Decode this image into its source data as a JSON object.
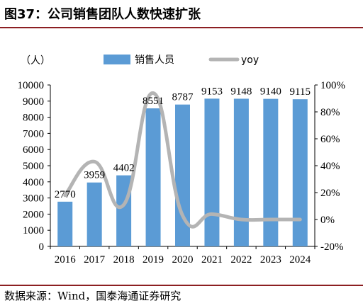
{
  "title": "图37：公司销售团队人数快速扩张",
  "source": "数据来源：Wind，国泰海通证券研究",
  "chart_data": {
    "type": "bar",
    "categories": [
      "2016",
      "2017",
      "2018",
      "2019",
      "2020",
      "2021",
      "2022",
      "2023",
      "2024"
    ],
    "series": [
      {
        "name": "销售人员",
        "type": "bar",
        "axis": "left",
        "values": [
          2770,
          3959,
          4402,
          8551,
          8787,
          9153,
          9148,
          9140,
          9115
        ]
      },
      {
        "name": "yoy",
        "type": "line",
        "axis": "right",
        "values": [
          18,
          43,
          11,
          94,
          3,
          4,
          0,
          0,
          0
        ]
      }
    ],
    "data_labels": [
      "2770",
      "3959",
      "4402",
      "8551",
      "8787",
      "9153",
      "9148",
      "9140",
      "9115"
    ],
    "ylabel": "（人）",
    "ylim": [
      0,
      10000
    ],
    "yticks": [
      "0",
      "1000",
      "2000",
      "3000",
      "4000",
      "5000",
      "6000",
      "7000",
      "8000",
      "9000",
      "10000"
    ],
    "y2lim": [
      -20,
      100
    ],
    "y2ticks": [
      "-20%",
      "0%",
      "20%",
      "40%",
      "60%",
      "80%",
      "100%"
    ],
    "legend_position": "top",
    "grid": false,
    "colors": {
      "bar": "#5b9bd5",
      "line": "#b4b4b4",
      "title_rule": "#8c1f22"
    }
  }
}
